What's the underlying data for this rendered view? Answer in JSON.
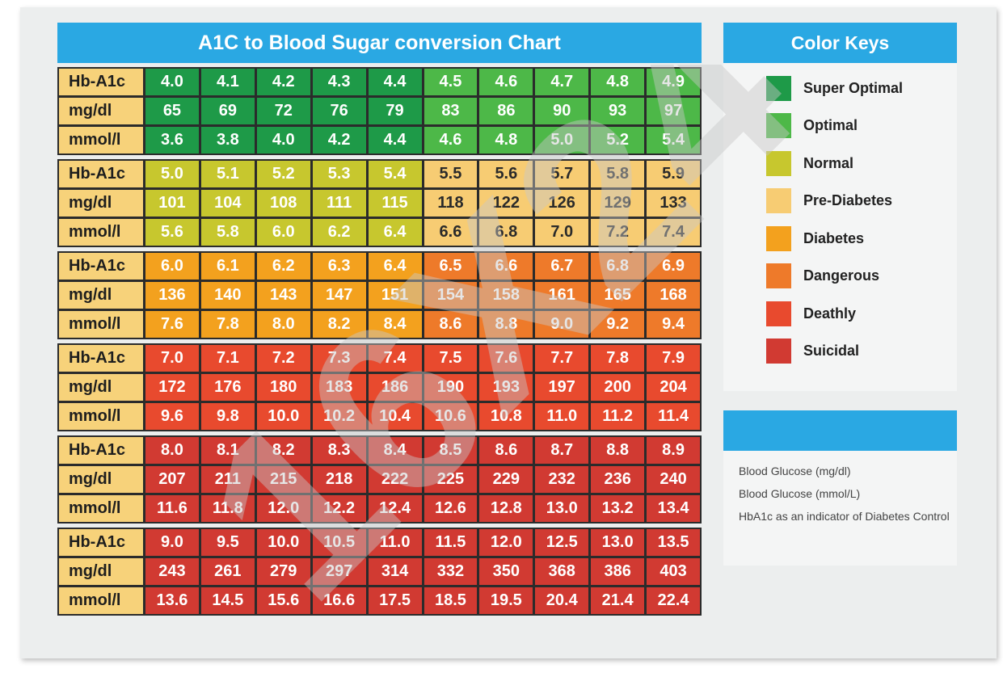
{
  "chart": {
    "title": "A1C to Blood Sugar conversion Chart",
    "row_labels": [
      "Hb-A1c",
      "mg/dl",
      "mmol/l"
    ],
    "blocks": [
      {
        "a1c": [
          "4.0",
          "4.1",
          "4.2",
          "4.3",
          "4.4",
          "4.5",
          "4.6",
          "4.7",
          "4.8",
          "4.9"
        ],
        "mgdl": [
          "65",
          "69",
          "72",
          "76",
          "79",
          "83",
          "86",
          "90",
          "93",
          "97"
        ],
        "mmol": [
          "3.6",
          "3.8",
          "4.0",
          "4.2",
          "4.4",
          "4.6",
          "4.8",
          "5.0",
          "5.2",
          "5.4"
        ],
        "colors": [
          "#1e9a48",
          "#1e9a48",
          "#1e9a48",
          "#1e9a48",
          "#1e9a48",
          "#4db848",
          "#4db848",
          "#4db848",
          "#4db848",
          "#4db848"
        ]
      },
      {
        "a1c": [
          "5.0",
          "5.1",
          "5.2",
          "5.3",
          "5.4",
          "5.5",
          "5.6",
          "5.7",
          "5.8",
          "5.9"
        ],
        "mgdl": [
          "101",
          "104",
          "108",
          "111",
          "115",
          "118",
          "122",
          "126",
          "129",
          "133"
        ],
        "mmol": [
          "5.6",
          "5.8",
          "6.0",
          "6.2",
          "6.4",
          "6.6",
          "6.8",
          "7.0",
          "7.2",
          "7.4"
        ],
        "colors": [
          "#c7c72e",
          "#c7c72e",
          "#c7c72e",
          "#c7c72e",
          "#c7c72e",
          "#f7cc73",
          "#f7cc73",
          "#f7cc73",
          "#f7cc73",
          "#f7cc73"
        ]
      },
      {
        "a1c": [
          "6.0",
          "6.1",
          "6.2",
          "6.3",
          "6.4",
          "6.5",
          "6.6",
          "6.7",
          "6.8",
          "6.9"
        ],
        "mgdl": [
          "136",
          "140",
          "143",
          "147",
          "151",
          "154",
          "158",
          "161",
          "165",
          "168"
        ],
        "mmol": [
          "7.6",
          "7.8",
          "8.0",
          "8.2",
          "8.4",
          "8.6",
          "8.8",
          "9.0",
          "9.2",
          "9.4"
        ],
        "colors": [
          "#f3a11e",
          "#f3a11e",
          "#f3a11e",
          "#f3a11e",
          "#f3a11e",
          "#ee7a2a",
          "#ee7a2a",
          "#ee7a2a",
          "#ee7a2a",
          "#ee7a2a"
        ]
      },
      {
        "a1c": [
          "7.0",
          "7.1",
          "7.2",
          "7.3",
          "7.4",
          "7.5",
          "7.6",
          "7.7",
          "7.8",
          "7.9"
        ],
        "mgdl": [
          "172",
          "176",
          "180",
          "183",
          "186",
          "190",
          "193",
          "197",
          "200",
          "204"
        ],
        "mmol": [
          "9.6",
          "9.8",
          "10.0",
          "10.2",
          "10.4",
          "10.6",
          "10.8",
          "11.0",
          "11.2",
          "11.4"
        ],
        "colors": [
          "#e84a2e",
          "#e84a2e",
          "#e84a2e",
          "#e84a2e",
          "#e84a2e",
          "#e84a2e",
          "#e84a2e",
          "#e84a2e",
          "#e84a2e",
          "#e84a2e"
        ]
      },
      {
        "a1c": [
          "8.0",
          "8.1",
          "8.2",
          "8.3",
          "8.4",
          "8.5",
          "8.6",
          "8.7",
          "8.8",
          "8.9"
        ],
        "mgdl": [
          "207",
          "211",
          "215",
          "218",
          "222",
          "225",
          "229",
          "232",
          "236",
          "240"
        ],
        "mmol": [
          "11.6",
          "11.8",
          "12.0",
          "12.2",
          "12.4",
          "12.6",
          "12.8",
          "13.0",
          "13.2",
          "13.4"
        ],
        "colors": [
          "#d13a32",
          "#d13a32",
          "#d13a32",
          "#d13a32",
          "#d13a32",
          "#d13a32",
          "#d13a32",
          "#d13a32",
          "#d13a32",
          "#d13a32"
        ]
      },
      {
        "a1c": [
          "9.0",
          "9.5",
          "10.0",
          "10.5",
          "11.0",
          "11.5",
          "12.0",
          "12.5",
          "13.0",
          "13.5"
        ],
        "mgdl": [
          "243",
          "261",
          "279",
          "297",
          "314",
          "332",
          "350",
          "368",
          "386",
          "403"
        ],
        "mmol": [
          "13.6",
          "14.5",
          "15.6",
          "16.6",
          "17.5",
          "18.5",
          "19.5",
          "20.4",
          "21.4",
          "22.4"
        ],
        "colors": [
          "#d13a32",
          "#d13a32",
          "#d13a32",
          "#d13a32",
          "#d13a32",
          "#d13a32",
          "#d13a32",
          "#d13a32",
          "#d13a32",
          "#d13a32"
        ]
      }
    ]
  },
  "keys": {
    "title": "Color Keys",
    "items": [
      {
        "label": "Super Optimal",
        "color": "#1e9a48"
      },
      {
        "label": "Optimal",
        "color": "#4db848"
      },
      {
        "label": "Normal",
        "color": "#c7c72e"
      },
      {
        "label": "Pre-Diabetes",
        "color": "#f7cc73"
      },
      {
        "label": "Diabetes",
        "color": "#f3a11e"
      },
      {
        "label": "Dangerous",
        "color": "#ee7a2a"
      },
      {
        "label": "Deathly",
        "color": "#e84a2e"
      },
      {
        "label": "Suicidal",
        "color": "#d13a32"
      }
    ]
  },
  "info": {
    "lines": [
      "Blood Glucose (mg/dl)",
      "Blood Glucose (mmol/L)",
      "HbA1c as an indicator of Diabetes Control"
    ]
  },
  "watermark": {
    "text": "16X24",
    "color": "#c8c8c8"
  }
}
